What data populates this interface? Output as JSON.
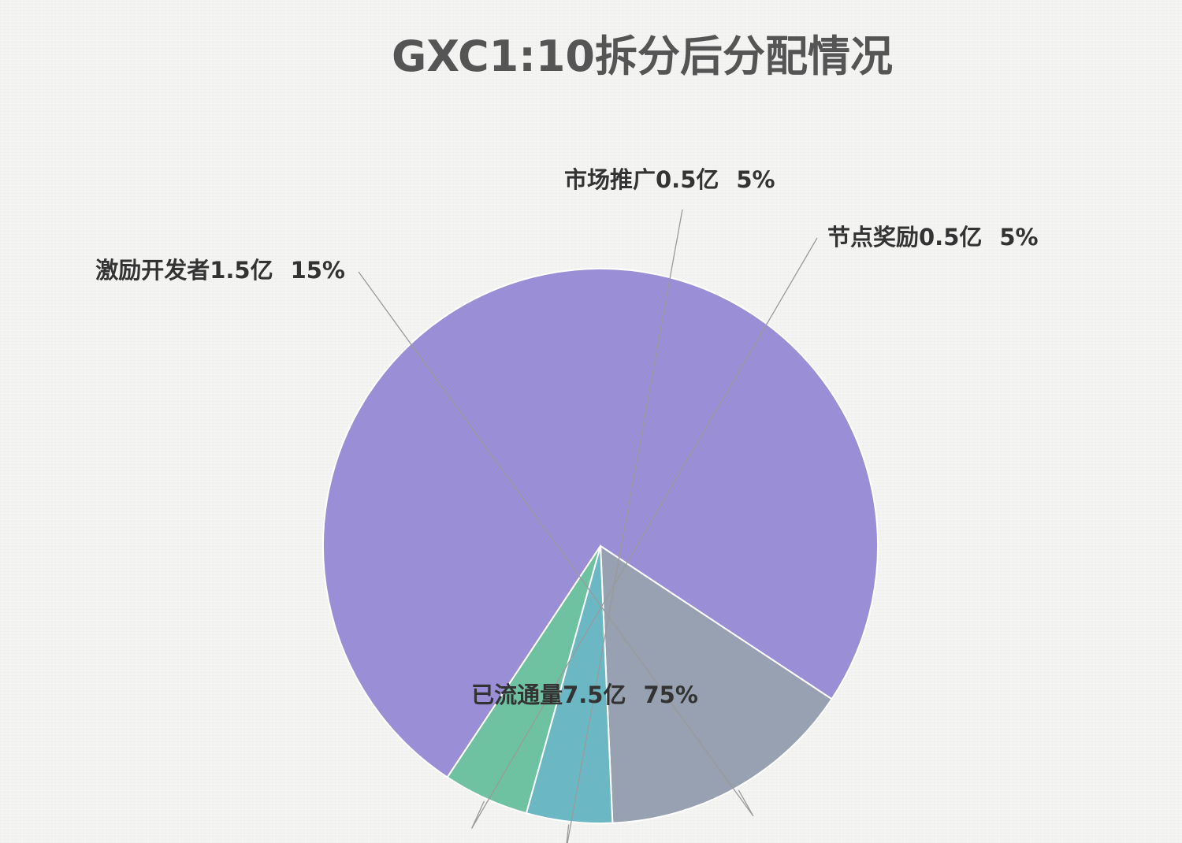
{
  "chart_data": {
    "type": "pie",
    "title": "GXC1:10拆分后分配情况",
    "slices": [
      {
        "label": "已流通量7.5亿",
        "percent": "75%",
        "value": 75,
        "color": "#9a8fd6"
      },
      {
        "label": "激励开发者1.5亿",
        "percent": "15%",
        "value": 15,
        "color": "#97a1b1"
      },
      {
        "label": "市场推广0.5亿",
        "percent": "5%",
        "value": 5,
        "color": "#6bb8c4"
      },
      {
        "label": "节点奖励0.5亿",
        "percent": "5%",
        "value": 5,
        "color": "#6ec2a2"
      }
    ]
  }
}
